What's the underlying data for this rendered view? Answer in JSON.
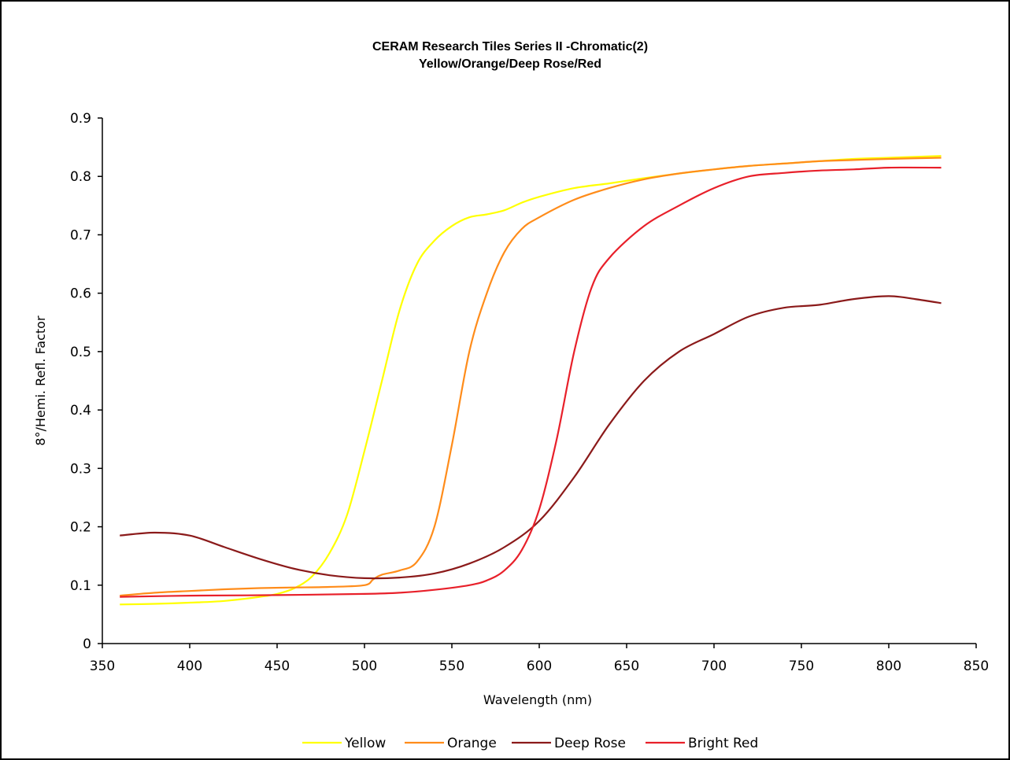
{
  "chart_data": {
    "type": "line",
    "title": "CERAM Research Tiles Series II -Chromatic(2)",
    "subtitle": "Yellow/Orange/Deep Rose/Red",
    "xlabel": "Wavelength (nm)",
    "ylabel": "8°/Hemi. Refl. Factor",
    "xlim": [
      350,
      850
    ],
    "ylim": [
      0,
      0.9
    ],
    "xticks": [
      350,
      400,
      450,
      500,
      550,
      600,
      650,
      700,
      750,
      800,
      850
    ],
    "xtick_labels": [
      "350",
      "400",
      "450",
      "500",
      "550",
      "600",
      "650",
      "700",
      "750",
      "800",
      "850"
    ],
    "yticks": [
      0,
      0.1,
      0.2,
      0.3,
      0.4,
      0.5,
      0.6,
      0.7,
      0.8,
      0.9
    ],
    "ytick_labels": [
      "0",
      "0.1",
      "0.2",
      "0.3",
      "0.4",
      "0.5",
      "0.6",
      "0.7",
      "0.8",
      "0.9"
    ],
    "grid": false,
    "legend_position": "bottom",
    "series": [
      {
        "name": "Yellow",
        "color": "#ffff00",
        "x": [
          360,
          380,
          400,
          420,
          440,
          450,
          460,
          470,
          480,
          490,
          500,
          510,
          520,
          530,
          540,
          550,
          560,
          570,
          580,
          590,
          600,
          620,
          640,
          660,
          680,
          700,
          720,
          740,
          760,
          780,
          800,
          830
        ],
        "y": [
          0.067,
          0.068,
          0.07,
          0.073,
          0.08,
          0.085,
          0.095,
          0.115,
          0.155,
          0.22,
          0.33,
          0.45,
          0.57,
          0.65,
          0.69,
          0.715,
          0.73,
          0.735,
          0.742,
          0.755,
          0.765,
          0.78,
          0.788,
          0.797,
          0.805,
          0.812,
          0.818,
          0.822,
          0.826,
          0.83,
          0.832,
          0.835
        ]
      },
      {
        "name": "Orange",
        "color": "#ff8c1a",
        "x": [
          360,
          380,
          400,
          420,
          440,
          460,
          480,
          500,
          505,
          510,
          520,
          530,
          540,
          550,
          560,
          570,
          580,
          590,
          600,
          620,
          640,
          660,
          680,
          700,
          720,
          740,
          760,
          780,
          800,
          830
        ],
        "y": [
          0.082,
          0.087,
          0.09,
          0.093,
          0.095,
          0.096,
          0.097,
          0.1,
          0.11,
          0.118,
          0.125,
          0.14,
          0.2,
          0.34,
          0.5,
          0.6,
          0.67,
          0.71,
          0.73,
          0.76,
          0.78,
          0.795,
          0.805,
          0.812,
          0.818,
          0.822,
          0.826,
          0.828,
          0.83,
          0.832
        ]
      },
      {
        "name": "Deep Rose",
        "color": "#8b1a1a",
        "x": [
          360,
          380,
          400,
          420,
          440,
          460,
          480,
          500,
          520,
          540,
          560,
          580,
          600,
          620,
          640,
          660,
          680,
          700,
          720,
          740,
          760,
          780,
          800,
          815,
          830
        ],
        "y": [
          0.185,
          0.19,
          0.185,
          0.165,
          0.145,
          0.128,
          0.117,
          0.112,
          0.113,
          0.12,
          0.137,
          0.165,
          0.21,
          0.285,
          0.375,
          0.45,
          0.5,
          0.53,
          0.56,
          0.575,
          0.58,
          0.59,
          0.595,
          0.59,
          0.583
        ]
      },
      {
        "name": "Bright Red",
        "color": "#e8202a",
        "x": [
          360,
          400,
          450,
          500,
          520,
          540,
          560,
          570,
          580,
          590,
          600,
          610,
          620,
          630,
          640,
          660,
          680,
          700,
          720,
          740,
          760,
          780,
          800,
          830
        ],
        "y": [
          0.08,
          0.082,
          0.083,
          0.085,
          0.087,
          0.092,
          0.1,
          0.108,
          0.125,
          0.16,
          0.23,
          0.35,
          0.5,
          0.61,
          0.66,
          0.715,
          0.75,
          0.78,
          0.8,
          0.806,
          0.81,
          0.812,
          0.815,
          0.815
        ]
      }
    ]
  }
}
